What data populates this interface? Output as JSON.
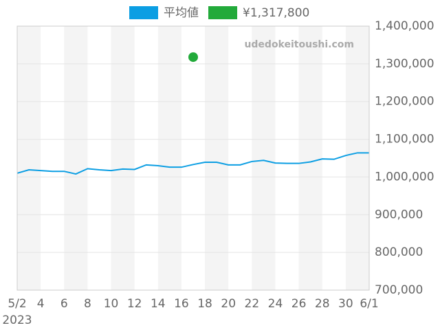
{
  "chart_data": {
    "type": "line",
    "categories": [
      "5/2",
      null,
      "4",
      null,
      "6",
      null,
      "8",
      null,
      "10",
      null,
      "12",
      null,
      "14",
      null,
      "16",
      null,
      "18",
      null,
      "20",
      null,
      "22",
      null,
      "24",
      null,
      "26",
      null,
      "28",
      null,
      "30",
      null,
      "6/1"
    ],
    "x_sublabel": "2023",
    "series": [
      {
        "name": "平均値",
        "color": "#0b9ee3",
        "values": [
          1010000,
          1019000,
          1017000,
          1015000,
          1015000,
          1008000,
          1022000,
          1019000,
          1017000,
          1021000,
          1020000,
          1032000,
          1030000,
          1026000,
          1026000,
          1033000,
          1039000,
          1039000,
          1032000,
          1032000,
          1041000,
          1044000,
          1037000,
          1036000,
          1036000,
          1040000,
          1048000,
          1047000,
          1057000,
          1064000,
          1064000
        ]
      },
      {
        "name": "¥1,317,800",
        "color": "#22aa3a",
        "values": [
          null,
          null,
          null,
          null,
          null,
          null,
          null,
          null,
          null,
          null,
          null,
          null,
          null,
          null,
          null,
          1317800,
          null,
          null,
          null,
          null,
          null,
          null,
          null,
          null,
          null,
          null,
          null,
          null,
          null,
          null,
          null
        ]
      }
    ],
    "ylim": [
      700000,
      1400000
    ],
    "yticks": [
      {
        "value": 700000,
        "label": "700,000"
      },
      {
        "value": 800000,
        "label": "800,000"
      },
      {
        "value": 900000,
        "label": "900,000"
      },
      {
        "value": 1000000,
        "label": "1,000,000"
      },
      {
        "value": 1100000,
        "label": "1,100,000"
      },
      {
        "value": 1200000,
        "label": "1,200,000"
      },
      {
        "value": 1300000,
        "label": "1,300,000"
      },
      {
        "value": 1400000,
        "label": "1,400,000"
      }
    ],
    "grid": true,
    "watermark": "udedokeitoushi.com",
    "legend": "top"
  }
}
